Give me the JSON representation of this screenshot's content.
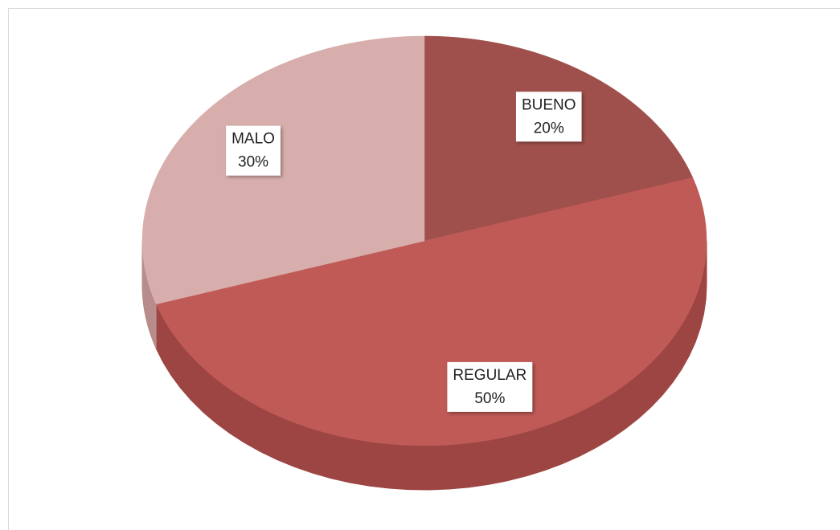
{
  "chart_data": {
    "type": "pie",
    "categories": [
      "BUENO",
      "REGULAR",
      "MALO"
    ],
    "values": [
      20,
      50,
      30
    ],
    "value_labels": [
      "20%",
      "50%",
      "30%"
    ],
    "colors": [
      "#a0504c",
      "#c05a57",
      "#d8aeac"
    ],
    "side_colors": [
      "#7e3a37",
      "#9c4542",
      "#b88c8a"
    ]
  }
}
